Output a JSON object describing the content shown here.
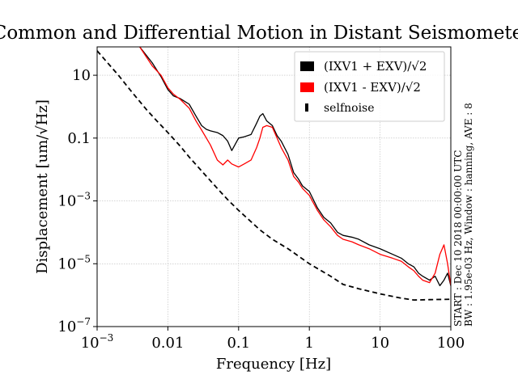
{
  "chart_data": {
    "type": "line",
    "title": "Common and Differential Motion in Distant Seismometer",
    "xlabel": "Frequency [Hz]",
    "ylabel": "Displacement [um/√Hz]",
    "xscale": "log",
    "yscale": "log",
    "xlim": [
      0.001,
      100
    ],
    "ylim": [
      1e-07,
      80
    ],
    "grid": true,
    "legend_placement": "top-right",
    "x_ticks": [
      {
        "value": 0.001,
        "label": "10",
        "sup": "−3"
      },
      {
        "value": 0.01,
        "label": "0.01",
        "sup": ""
      },
      {
        "value": 0.1,
        "label": "0.1",
        "sup": ""
      },
      {
        "value": 1,
        "label": "1",
        "sup": ""
      },
      {
        "value": 10,
        "label": "10",
        "sup": ""
      },
      {
        "value": 100,
        "label": "100",
        "sup": ""
      }
    ],
    "y_ticks": [
      {
        "value": 1e-07,
        "label": "10",
        "sup": "−7"
      },
      {
        "value": 1e-05,
        "label": "10",
        "sup": "−5"
      },
      {
        "value": 0.001,
        "label": "10",
        "sup": "−3"
      },
      {
        "value": 0.1,
        "label": "0.1",
        "sup": ""
      },
      {
        "value": 10,
        "label": "10",
        "sup": ""
      }
    ],
    "annotation_lines": [
      "START : Dec 10 2018 00:00:00 UTC",
      "BW : 1.95e-03 Hz, Window : hanning, AVE : 8"
    ],
    "series": [
      {
        "name": "(IXV1 + EXV)/√2",
        "color": "#000000",
        "style": "solid",
        "x": [
          0.004,
          0.006,
          0.008,
          0.01,
          0.012,
          0.015,
          0.02,
          0.025,
          0.03,
          0.035,
          0.04,
          0.05,
          0.06,
          0.07,
          0.08,
          0.1,
          0.12,
          0.15,
          0.18,
          0.2,
          0.22,
          0.25,
          0.3,
          0.35,
          0.4,
          0.5,
          0.6,
          0.7,
          0.8,
          1,
          1.3,
          1.6,
          2,
          2.5,
          3,
          4,
          5,
          7,
          10,
          15,
          20,
          25,
          30,
          35,
          40,
          50,
          60,
          70,
          80,
          90,
          100
        ],
        "y": [
          80,
          25,
          9,
          3.5,
          2.2,
          1.8,
          1.2,
          0.5,
          0.25,
          0.19,
          0.17,
          0.15,
          0.12,
          0.08,
          0.04,
          0.1,
          0.11,
          0.13,
          0.3,
          0.5,
          0.6,
          0.35,
          0.25,
          0.12,
          0.08,
          0.03,
          0.008,
          0.005,
          0.003,
          0.002,
          0.0006,
          0.0003,
          0.0002,
          0.0001,
          8e-05,
          7e-05,
          6e-05,
          4e-05,
          3e-05,
          2e-05,
          1.5e-05,
          1e-05,
          8e-06,
          5e-06,
          4e-06,
          3e-06,
          4e-06,
          2e-06,
          3e-06,
          5e-06,
          2e-06
        ]
      },
      {
        "name": "(IXV1 - EXV)/√2",
        "color": "#ff0000",
        "style": "solid",
        "x": [
          0.004,
          0.006,
          0.008,
          0.01,
          0.012,
          0.015,
          0.02,
          0.025,
          0.03,
          0.035,
          0.04,
          0.05,
          0.06,
          0.07,
          0.08,
          0.1,
          0.12,
          0.15,
          0.18,
          0.2,
          0.22,
          0.25,
          0.3,
          0.35,
          0.4,
          0.5,
          0.6,
          0.7,
          0.8,
          1,
          1.3,
          1.6,
          2,
          2.5,
          3,
          4,
          5,
          7,
          10,
          15,
          20,
          25,
          30,
          35,
          40,
          50,
          60,
          70,
          80,
          90,
          100
        ],
        "y": [
          80,
          20,
          10,
          4,
          2.5,
          1.7,
          0.9,
          0.35,
          0.18,
          0.1,
          0.06,
          0.02,
          0.014,
          0.02,
          0.015,
          0.012,
          0.015,
          0.02,
          0.05,
          0.1,
          0.22,
          0.25,
          0.22,
          0.1,
          0.05,
          0.02,
          0.006,
          0.004,
          0.0025,
          0.0015,
          0.0005,
          0.00025,
          0.00015,
          8e-05,
          6e-05,
          5e-05,
          4e-05,
          3e-05,
          2e-05,
          1.5e-05,
          1.2e-05,
          8e-06,
          6e-06,
          4e-06,
          3e-06,
          2.5e-06,
          5e-06,
          2e-05,
          4e-05,
          1e-05,
          2e-06
        ]
      },
      {
        "name": "selfnoise",
        "color": "#000000",
        "style": "dashed",
        "x": [
          0.001,
          0.002,
          0.003,
          0.005,
          0.007,
          0.01,
          0.015,
          0.02,
          0.03,
          0.05,
          0.07,
          0.1,
          0.2,
          0.3,
          0.5,
          1,
          2,
          3,
          5,
          10,
          20,
          30,
          50,
          100
        ],
        "y": [
          60,
          10,
          3.2,
          0.8,
          0.35,
          0.15,
          0.055,
          0.025,
          0.009,
          0.0025,
          0.0011,
          0.0005,
          0.00012,
          6e-05,
          3e-05,
          1e-05,
          4e-06,
          2.2e-06,
          1.6e-06,
          1.1e-06,
          8e-07,
          7e-07,
          7.2e-07,
          7.4e-07
        ]
      }
    ]
  }
}
